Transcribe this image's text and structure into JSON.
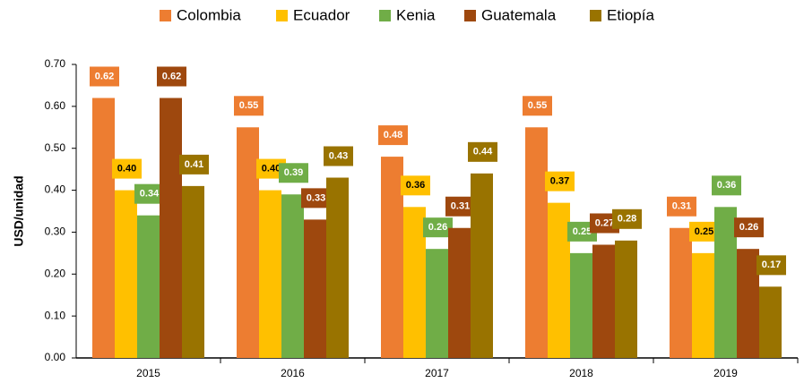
{
  "chart_data": {
    "type": "bar",
    "ylabel": "USD/unidad",
    "categories": [
      "2015",
      "2016",
      "2017",
      "2018",
      "2019"
    ],
    "series": [
      {
        "name": "Colombia",
        "color": "#ED7D31",
        "values": [
          0.62,
          0.55,
          0.48,
          0.55,
          0.31
        ],
        "value_labels": [
          "0.62",
          "0.55",
          "0.48",
          "0.55",
          "0.31"
        ]
      },
      {
        "name": "Ecuador",
        "color": "#FFC000",
        "values": [
          0.4,
          0.4,
          0.36,
          0.37,
          0.25
        ],
        "value_labels": [
          "0.40",
          "0.40",
          "0.36",
          "0.37",
          "0.25"
        ]
      },
      {
        "name": "Kenia",
        "color": "#70AD47",
        "values": [
          0.34,
          0.39,
          0.26,
          0.25,
          0.36
        ],
        "value_labels": [
          "0.34",
          "0.39",
          "0.26",
          "0.25",
          "0.36"
        ]
      },
      {
        "name": "Guatemala",
        "color": "#9E480E",
        "values": [
          0.62,
          0.33,
          0.31,
          0.27,
          0.26
        ],
        "value_labels": [
          "0.62",
          "0.33",
          "0.31",
          "0.27",
          "0.26"
        ]
      },
      {
        "name": "Etiopía",
        "color": "#997300",
        "values": [
          0.41,
          0.43,
          0.44,
          0.28,
          0.17
        ],
        "value_labels": [
          "0.41",
          "0.43",
          "0.44",
          "0.28",
          "0.17"
        ]
      }
    ],
    "ylim": [
      0,
      0.7
    ],
    "yticks": [
      {
        "value": 0,
        "label": "0.00"
      },
      {
        "value": 0.1,
        "label": "0.10"
      },
      {
        "value": 0.2,
        "label": "0.20"
      },
      {
        "value": 0.3,
        "label": "0.30"
      },
      {
        "value": 0.4,
        "label": "0.40"
      },
      {
        "value": 0.5,
        "label": "0.50"
      },
      {
        "value": 0.6,
        "label": "0.60"
      },
      {
        "value": 0.7,
        "label": "0.70"
      }
    ],
    "grid": false,
    "legend": "top"
  }
}
